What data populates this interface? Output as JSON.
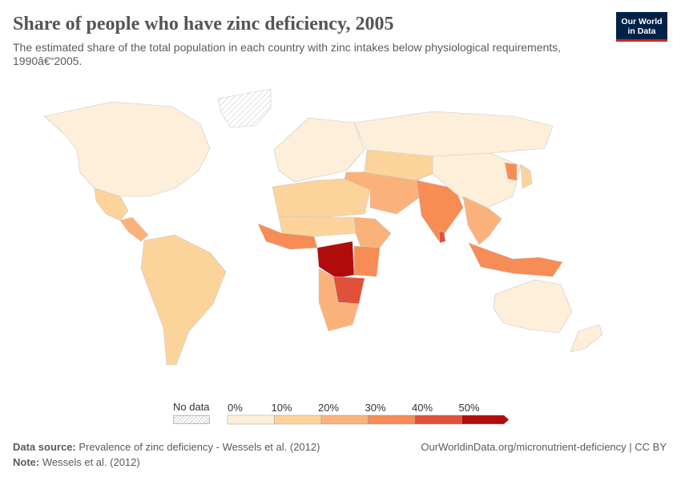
{
  "header": {
    "title": "Share of people who have zinc deficiency, 2005",
    "subtitle": "The estimated share of the total population in each country with zinc intakes below physiological requirements, 1990â€“2005."
  },
  "logo": {
    "line1": "Our World",
    "line2": "in Data",
    "bg_color": "#002147",
    "accent_color": "#ce261e"
  },
  "legend": {
    "no_data_label": "No data",
    "bins": [
      {
        "label": "0%",
        "color": "#fdefd9"
      },
      {
        "label": "10%",
        "color": "#fcd49b"
      },
      {
        "label": "20%",
        "color": "#fbb27a"
      },
      {
        "label": "30%",
        "color": "#f78c55"
      },
      {
        "label": "40%",
        "color": "#e0503a"
      },
      {
        "label": "50%",
        "color": "#b10c0c"
      }
    ]
  },
  "footer": {
    "source_label": "Data source:",
    "source_text": "Prevalence of zinc deficiency - Wessels et al. (2012)",
    "note_label": "Note:",
    "note_text": "Wessels et al. (2012)",
    "url_text": "OurWorldinData.org/micronutrient-deficiency | CC BY"
  },
  "chart_data": {
    "type": "choropleth",
    "year": 2005,
    "unit": "%",
    "scale_bins": [
      0,
      10,
      20,
      30,
      40,
      50
    ],
    "regions": [
      {
        "name": "North America",
        "bin": 0
      },
      {
        "name": "Greenland",
        "bin": "no data"
      },
      {
        "name": "Mexico",
        "bin": 1
      },
      {
        "name": "Central America",
        "bin": 2
      },
      {
        "name": "South America",
        "bin": 1
      },
      {
        "name": "Europe",
        "bin": 0
      },
      {
        "name": "Russia",
        "bin": 0
      },
      {
        "name": "North Africa",
        "bin": 1
      },
      {
        "name": "Sahel",
        "bin": 1
      },
      {
        "name": "West Africa",
        "bin": 3
      },
      {
        "name": "Horn of Africa",
        "bin": 2
      },
      {
        "name": "Central Africa (DR Congo)",
        "bin": 5
      },
      {
        "name": "East Africa",
        "bin": 3
      },
      {
        "name": "Zambia / Malawi",
        "bin": 4
      },
      {
        "name": "Southern Africa",
        "bin": 2
      },
      {
        "name": "Middle East",
        "bin": 2
      },
      {
        "name": "Central Asia",
        "bin": 1
      },
      {
        "name": "India",
        "bin": 3
      },
      {
        "name": "Sri Lanka",
        "bin": 4
      },
      {
        "name": "China",
        "bin": 0
      },
      {
        "name": "Southeast Asia",
        "bin": 2
      },
      {
        "name": "Indonesia",
        "bin": 3
      },
      {
        "name": "Korea",
        "bin": 3
      },
      {
        "name": "Japan",
        "bin": 1
      },
      {
        "name": "Australia",
        "bin": 0
      },
      {
        "name": "New Zealand",
        "bin": 0
      }
    ]
  }
}
